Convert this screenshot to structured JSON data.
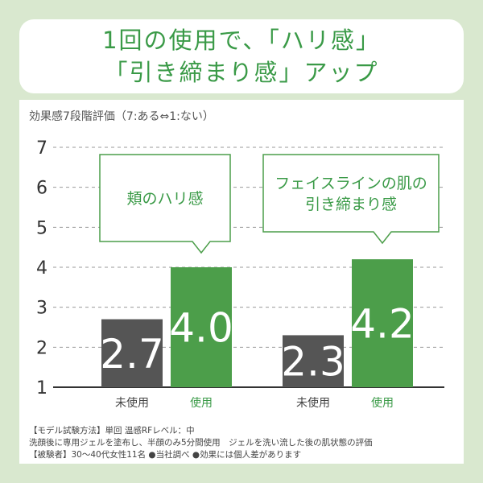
{
  "header": {
    "line1": "1回の使用で、「ハリ感」",
    "line2": "「引き締まり感」アップ"
  },
  "chart_title": "効果感7段階評価（7:ある⇔1:ない）",
  "chart_data": {
    "type": "bar",
    "y_ticks": [
      "1",
      "2",
      "3",
      "4",
      "5",
      "6",
      "7"
    ],
    "ylim": [
      1,
      7
    ],
    "grid": "dashed",
    "groups": [
      {
        "label": "頬のハリ感",
        "bars": [
          {
            "category": "未使用",
            "value": 2.7,
            "value_label": "2.7",
            "color": "#555555"
          },
          {
            "category": "使用",
            "value": 4.0,
            "value_label": "4.0",
            "color": "#4c9e4a"
          }
        ]
      },
      {
        "label_lines": [
          "フェイスラインの肌の",
          "引き締まり感"
        ],
        "bars": [
          {
            "category": "未使用",
            "value": 2.3,
            "value_label": "2.3",
            "color": "#555555"
          },
          {
            "category": "使用",
            "value": 4.2,
            "value_label": "4.2",
            "color": "#4c9e4a"
          }
        ]
      }
    ]
  },
  "footnotes": [
    "【モデル試験方法】単回 温感RFレベル：中",
    "洗顔後に専用ジェルを塗布し、半顔のみ5分間使用　ジェルを洗い流した後の肌状態の評価",
    "【被験者】30～40代女性11名 ●当社調べ ●効果には個人差があります"
  ]
}
